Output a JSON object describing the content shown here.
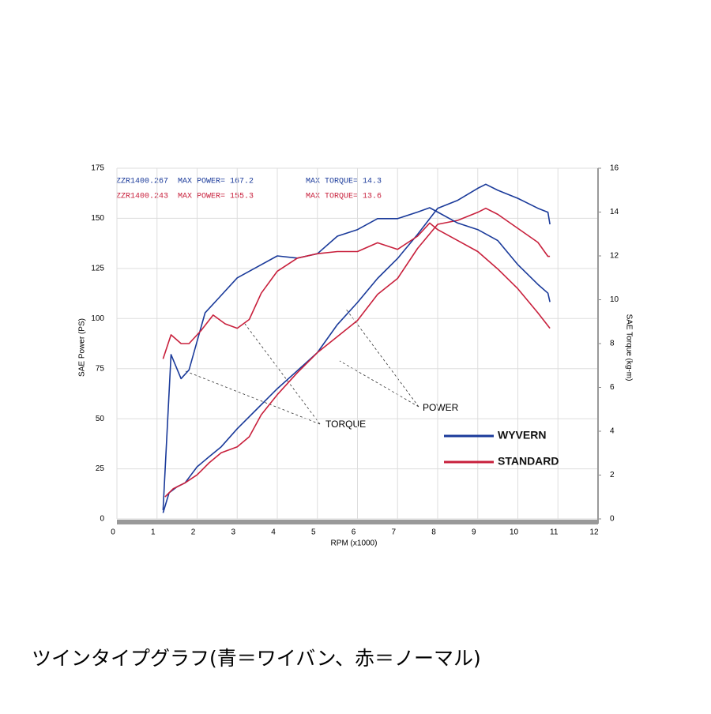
{
  "chart_data": {
    "type": "line",
    "info": [
      [
        "ZZR1400.267  MAX POWER= 167.2",
        "MAX TORQUE= 14.3"
      ],
      [
        "ZZR1400.243  MAX POWER= 155.3",
        "MAX TORQUE= 13.6"
      ]
    ],
    "xlabel": "RPM (x1000)",
    "ylabel": "SAE Power (PS)",
    "y2label": "SAE Torque (kg-m)",
    "xlim": [
      0,
      12
    ],
    "xticks": [
      0,
      1,
      2,
      3,
      4,
      5,
      6,
      7,
      8,
      9,
      10,
      11,
      12
    ],
    "ylim": [
      0,
      175
    ],
    "yticks": [
      0,
      25,
      50,
      75,
      100,
      125,
      150,
      175
    ],
    "y2lim": [
      0,
      16
    ],
    "y2ticks": [
      0,
      2,
      4,
      6,
      8,
      10,
      12,
      14,
      16
    ],
    "grid": true,
    "annotations": [
      "POWER",
      "TORQUE"
    ],
    "series": [
      {
        "name": "WYVERN",
        "color": "#1a3a9a",
        "x": [
          1.15,
          1.3,
          1.5,
          1.7,
          2.0,
          2.3,
          2.6,
          3.0,
          3.5,
          4.0,
          4.5,
          5.0,
          5.5,
          6.0,
          6.5,
          7.0,
          7.5,
          8.0,
          8.5,
          9.0,
          9.2,
          9.5,
          10.0,
          10.5,
          10.75,
          10.8
        ],
        "values": [
          3,
          13,
          16,
          18,
          26,
          31,
          36,
          45,
          55,
          65,
          74,
          83,
          97,
          108,
          120,
          130,
          142,
          155,
          159,
          165,
          167,
          164,
          160,
          155,
          153,
          147
        ]
      },
      {
        "name": "STANDARD",
        "color": "#c8203c",
        "x": [
          1.2,
          1.4,
          1.7,
          2.0,
          2.3,
          2.6,
          3.0,
          3.3,
          3.6,
          4.0,
          4.5,
          5.0,
          5.5,
          6.0,
          6.5,
          7.0,
          7.5,
          8.0,
          8.5,
          9.0,
          9.2,
          9.5,
          10.0,
          10.5,
          10.75,
          10.8
        ],
        "values": [
          11,
          15,
          18,
          22,
          28,
          33,
          36,
          41,
          52,
          62,
          73,
          83,
          91,
          99,
          112,
          120,
          135,
          147,
          149,
          153,
          155,
          152,
          145,
          138,
          131,
          131
        ]
      },
      {
        "color": "#1a3a9a",
        "axis": "y2",
        "x": [
          1.15,
          1.35,
          1.6,
          1.8,
          2.2,
          2.5,
          3.0,
          3.5,
          4.0,
          4.5,
          5.0,
          5.5,
          6.0,
          6.5,
          7.0,
          7.5,
          7.8,
          8.0,
          8.5,
          9.0,
          9.5,
          10.0,
          10.5,
          10.75,
          10.8
        ],
        "values": [
          0.4,
          7.5,
          6.4,
          6.8,
          9.4,
          10.0,
          11.0,
          11.5,
          12.0,
          11.9,
          12.1,
          12.9,
          13.2,
          13.7,
          13.7,
          14.0,
          14.2,
          14.0,
          13.5,
          13.2,
          12.7,
          11.6,
          10.7,
          10.3,
          9.9
        ]
      },
      {
        "color": "#c8203c",
        "axis": "y2",
        "x": [
          1.15,
          1.35,
          1.6,
          1.8,
          2.1,
          2.4,
          2.7,
          3.0,
          3.3,
          3.6,
          4.0,
          4.5,
          5.0,
          5.5,
          6.0,
          6.5,
          7.0,
          7.5,
          7.8,
          8.0,
          8.5,
          9.0,
          9.5,
          10.0,
          10.5,
          10.8
        ],
        "values": [
          7.3,
          8.4,
          8.0,
          8.0,
          8.6,
          9.3,
          8.9,
          8.7,
          9.1,
          10.3,
          11.3,
          11.9,
          12.1,
          12.2,
          12.2,
          12.6,
          12.3,
          12.9,
          13.5,
          13.2,
          12.7,
          12.2,
          11.4,
          10.5,
          9.4,
          8.7
        ]
      }
    ]
  },
  "caption": "ツインタイプグラフ(青＝ワイバン、赤＝ノーマル)"
}
